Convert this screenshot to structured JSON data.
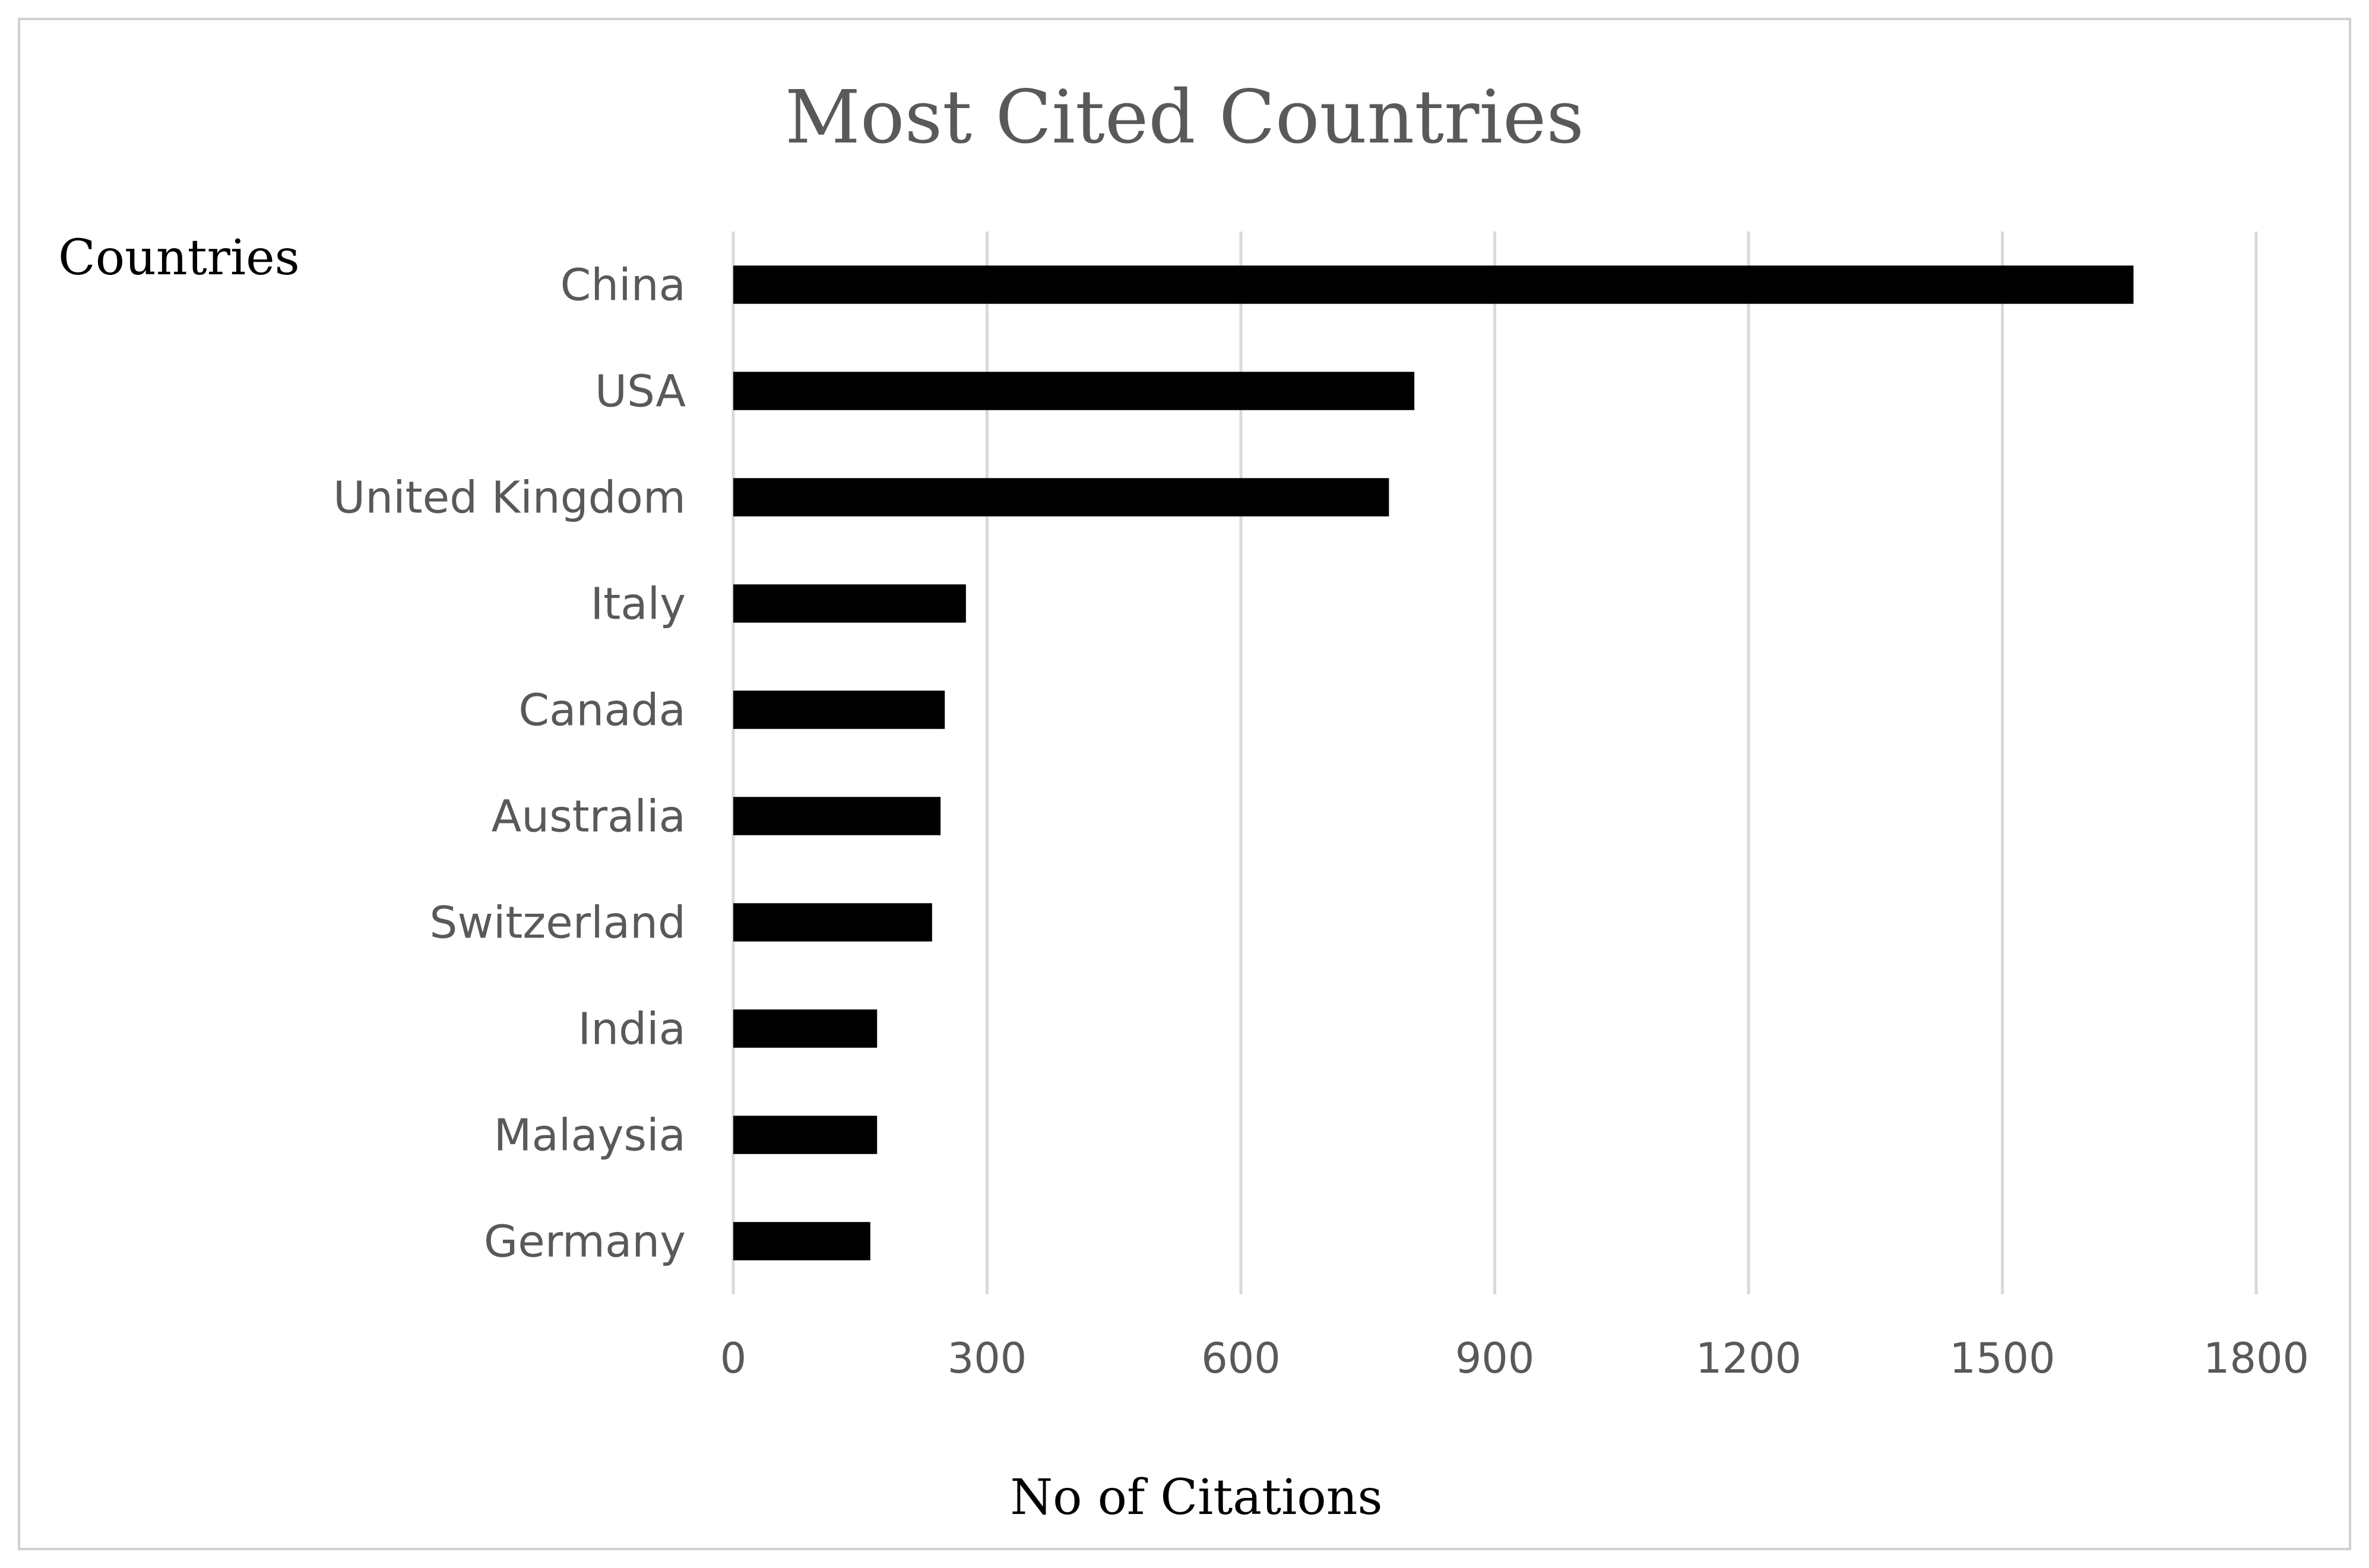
{
  "chart_data": {
    "type": "bar",
    "orientation": "horizontal",
    "title": "Most Cited Countries",
    "xlabel": "No of Citations",
    "ylabel": "Countries",
    "categories": [
      "China",
      "USA",
      "United Kingdom",
      "Italy",
      "Canada",
      "Australia",
      "Switzerland",
      "India",
      "Malaysia",
      "Germany"
    ],
    "values": [
      1655,
      805,
      775,
      275,
      250,
      245,
      235,
      170,
      170,
      162
    ],
    "xlim": [
      0,
      1800
    ],
    "xticks": [
      0,
      300,
      600,
      900,
      1200,
      1500,
      1800
    ],
    "grid": "vertical",
    "legend": "none",
    "bar_color": "#000000",
    "grid_color": "#d9d9d9"
  }
}
